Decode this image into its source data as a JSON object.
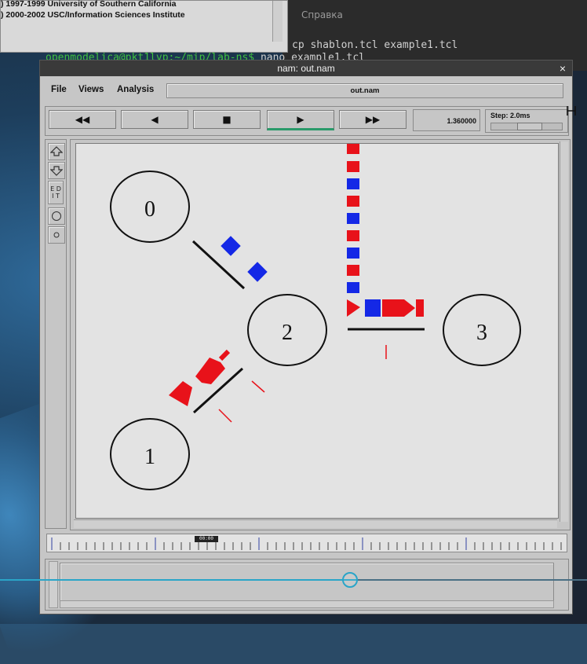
{
  "window": {
    "title": "nam: out.nam",
    "close_glyph": "×"
  },
  "background_copyright": {
    "line1": ") 1997-1999 University of Southern California",
    "line2": ") 2000-2002 USC/Information Sciences Institute"
  },
  "terminal": {
    "top_line": "",
    "menu_label": "Справка",
    "command_line": "cp shablon.tcl example1.tcl",
    "prompt": "openmodelica@pkt1lvp:~/mip/lab-ns$",
    "prompt_command": "nano example1.tcl"
  },
  "menubar": {
    "file": "File",
    "views": "Views",
    "analysis": "Analysis",
    "filename": "out.nam"
  },
  "toolbar": {
    "rewind_label": "◀◀",
    "back_label": "◀",
    "stop_label": "■",
    "play_label": "▶",
    "fastforward_label": "▶▶",
    "time_value": "1.360000",
    "step_label": "Step: 2.0ms",
    "step_level": 0.55
  },
  "side_tools": {
    "zoom_in_icon": "zoom-in-icon",
    "zoom_out_icon": "zoom-out-icon",
    "edit_label": "E D\nI T",
    "circle_large_icon": "circle-icon",
    "circle_small_icon": "small-circle-icon"
  },
  "network": {
    "nodes": [
      "0",
      "1",
      "2",
      "3"
    ],
    "colors": {
      "packet_red": "#e8121a",
      "packet_blue": "#1428e6",
      "link": "#111111",
      "node_stroke": "#111111",
      "canvas_bg": "#e3e3e3"
    }
  },
  "timeline": {
    "marker_label": "00:00"
  },
  "colors": {
    "window_bg": "#c6c6c6",
    "titlebar_bg": "#3a3a3a",
    "accent_play": "#2a9a6a",
    "overlay_accent": "#2aa5c8"
  }
}
